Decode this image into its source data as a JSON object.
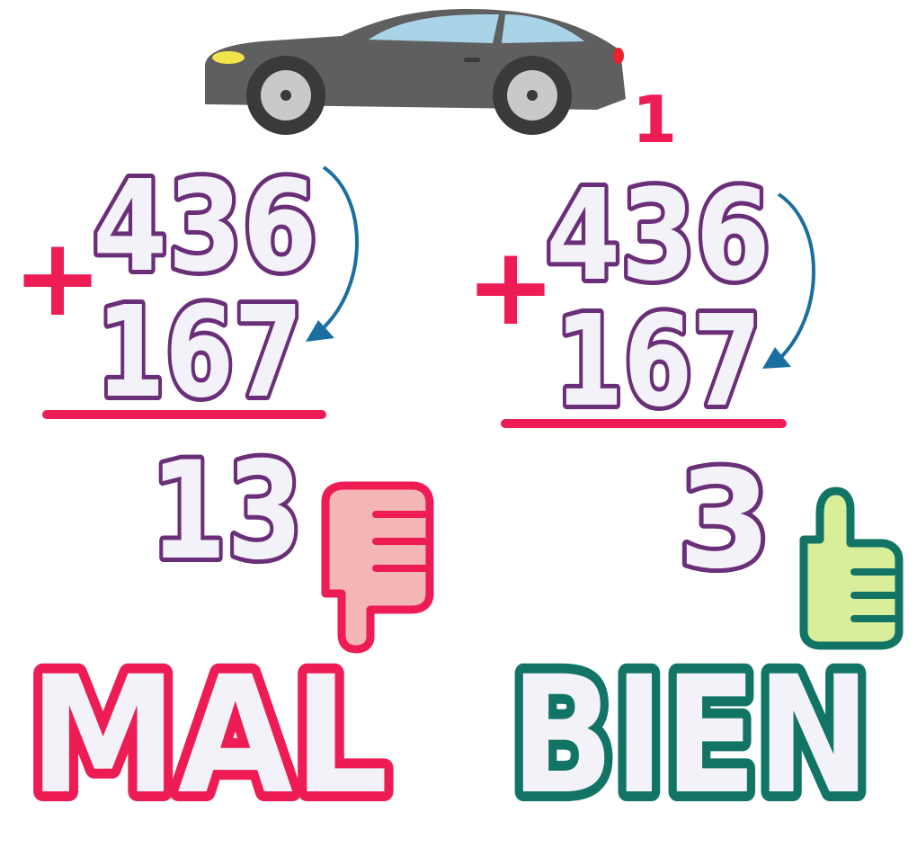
{
  "car_icon": "sports-car-icon",
  "carry_digit": "1",
  "wrong_example": {
    "top_number": "436",
    "bottom_number": "167",
    "operator": "+",
    "result": "13",
    "verdict": "MAL",
    "verdict_icon": "thumbs-down-icon",
    "verdict_color": "#ee1c55"
  },
  "right_example": {
    "top_number": "436",
    "bottom_number": "167",
    "operator": "+",
    "result": "3",
    "verdict": "BIEN",
    "verdict_icon": "thumbs-up-icon",
    "verdict_color": "#127465"
  },
  "colors": {
    "digit_outline": "#6a2f78",
    "digit_fill": "#f3f2f8",
    "accent_red": "#ee1c55",
    "arrow_blue": "#1a6fa0",
    "car_body": "#5f5f5f",
    "thumb_down_fill": "#f4b5b5",
    "thumb_up_fill": "#d8ee9a"
  }
}
